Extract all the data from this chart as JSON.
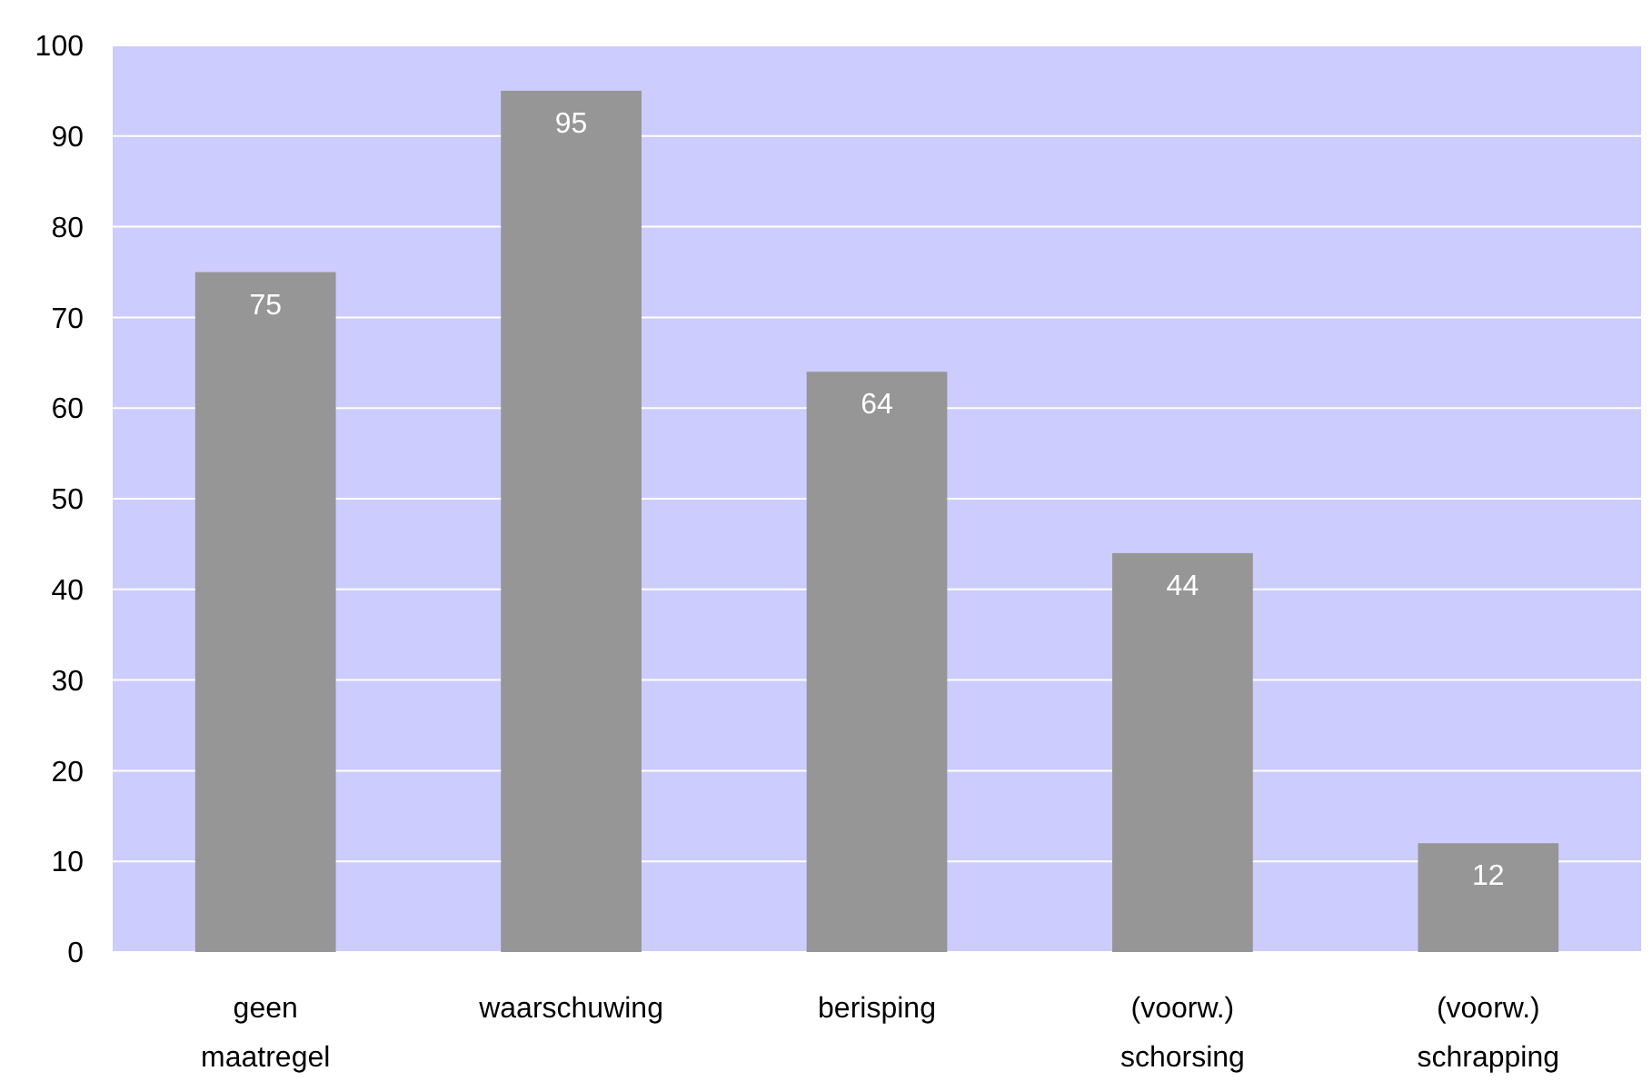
{
  "chart_data": {
    "type": "bar",
    "categories": [
      "geen maatregel",
      "waarschuwing",
      "berisping",
      "(voorw.) schorsing",
      "(voorw.) schrapping"
    ],
    "values": [
      75,
      95,
      64,
      44,
      12
    ],
    "color": "#969696",
    "ylim": [
      0,
      100
    ],
    "yticks": [
      0,
      10,
      20,
      30,
      40,
      50,
      60,
      70,
      80,
      90,
      100
    ],
    "grid": "y",
    "data_labels": true
  }
}
